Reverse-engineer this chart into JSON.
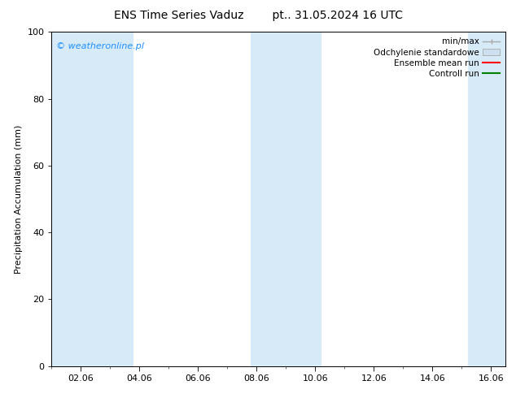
{
  "title": "ENS Time Series Vaduz",
  "title2": "pt.. 31.05.2024 16 UTC",
  "ylabel": "Precipitation Accumulation (mm)",
  "ylim": [
    0,
    100
  ],
  "yticks": [
    0,
    20,
    40,
    60,
    80,
    100
  ],
  "xtick_labels": [
    "02.06",
    "04.06",
    "06.06",
    "08.06",
    "10.06",
    "12.06",
    "14.06",
    "16.06"
  ],
  "xtick_positions": [
    2,
    4,
    6,
    8,
    10,
    12,
    14,
    16
  ],
  "xlim": [
    1.0,
    16.5
  ],
  "watermark": "© weatheronline.pl",
  "watermark_color": "#1E90FF",
  "background_color": "#ffffff",
  "shaded_color": "#d6eaf8",
  "shade_ranges": [
    [
      1.0,
      2.8
    ],
    [
      2.8,
      3.8
    ],
    [
      7.8,
      9.0
    ],
    [
      9.0,
      10.2
    ],
    [
      15.2,
      16.5
    ]
  ],
  "legend_items": [
    {
      "label": "min/max",
      "color": "#aaaaaa",
      "type": "errorbar"
    },
    {
      "label": "Odchylenie standardowe",
      "color": "#cce0f0",
      "type": "box"
    },
    {
      "label": "Ensemble mean run",
      "color": "#ff0000",
      "type": "line"
    },
    {
      "label": "Controll run",
      "color": "#008000",
      "type": "line"
    }
  ],
  "title_fontsize": 10,
  "tick_fontsize": 8,
  "ylabel_fontsize": 8,
  "legend_fontsize": 7.5,
  "watermark_fontsize": 8
}
